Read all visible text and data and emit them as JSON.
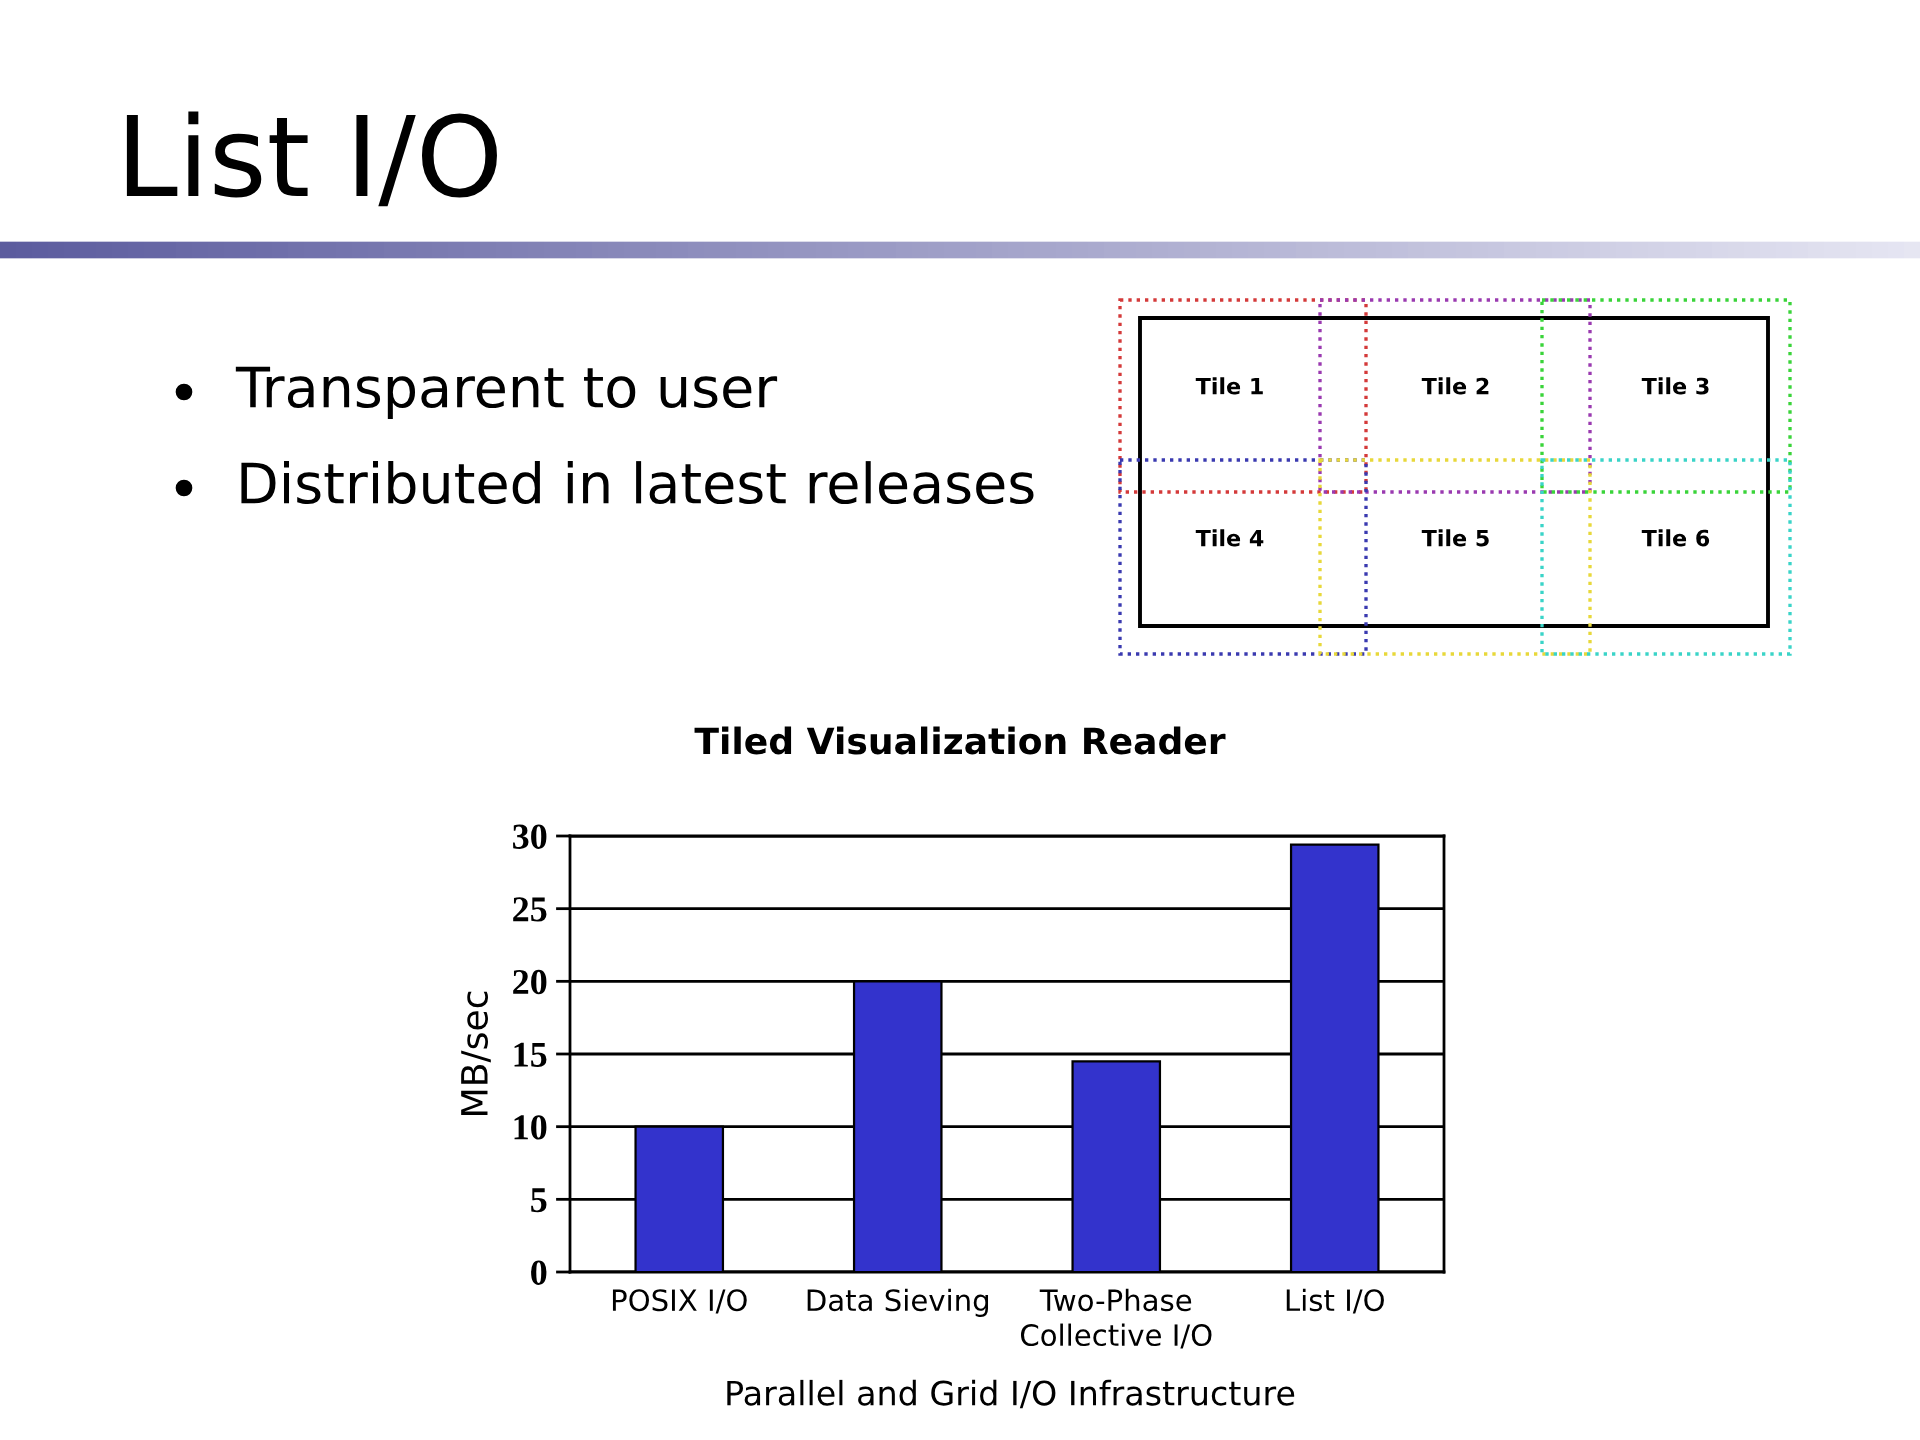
{
  "chart_data": [
    {
      "type": "other",
      "title": "List I/O",
      "annotations": [
        "Transparent to user",
        "Distributed in latest releases",
        "Tile 1",
        "Tile 2",
        "Tile 3",
        "Tile 4",
        "Tile 5",
        "Tile 6"
      ]
    },
    {
      "type": "bar",
      "title": "Tiled Visualization Reader",
      "ylabel": "MB/sec",
      "categories": [
        "POSIX I/O",
        "Data Sieving",
        "Two-Phase\nCollective I/O",
        "List I/O"
      ],
      "values": [
        10,
        20,
        14.5,
        29.4
      ],
      "color": "#3333cc",
      "ylim": [
        0,
        30
      ],
      "yticks": [
        0,
        5,
        10,
        15,
        20,
        25,
        30
      ],
      "grid": "y",
      "annotations": [
        "Parallel and Grid I/O Infrastructure"
      ]
    }
  ]
}
